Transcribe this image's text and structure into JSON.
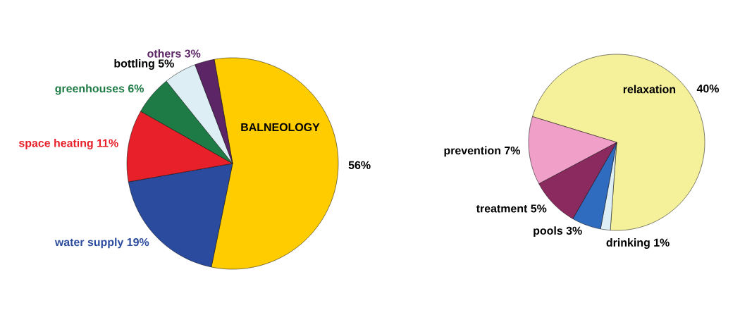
{
  "chart_data": [
    {
      "type": "pie",
      "categories": [
        "BALNEOLOGY",
        "water supply",
        "space heating",
        "greenhouses",
        "bottling",
        "others"
      ],
      "values": [
        56,
        19,
        11,
        6,
        5,
        3
      ],
      "colors": [
        "#ffcc00",
        "#2b4c9e",
        "#e8202a",
        "#1e7b45",
        "#ddeff5",
        "#5c2566"
      ],
      "value_labels": [
        "56%",
        "19%",
        "11%",
        "6%",
        "5%",
        "3%"
      ]
    },
    {
      "type": "pie",
      "categories": [
        "relaxation",
        "drinking",
        "pools",
        "treatment",
        "prevention"
      ],
      "values": [
        40,
        1,
        3,
        5,
        7
      ],
      "colors": [
        "#f5f09a",
        "#ddeff5",
        "#2f6cc0",
        "#8b2a5e",
        "#f0a0c8"
      ],
      "value_labels": [
        "40%",
        "1%",
        "3%",
        "5%",
        "7%"
      ]
    }
  ]
}
